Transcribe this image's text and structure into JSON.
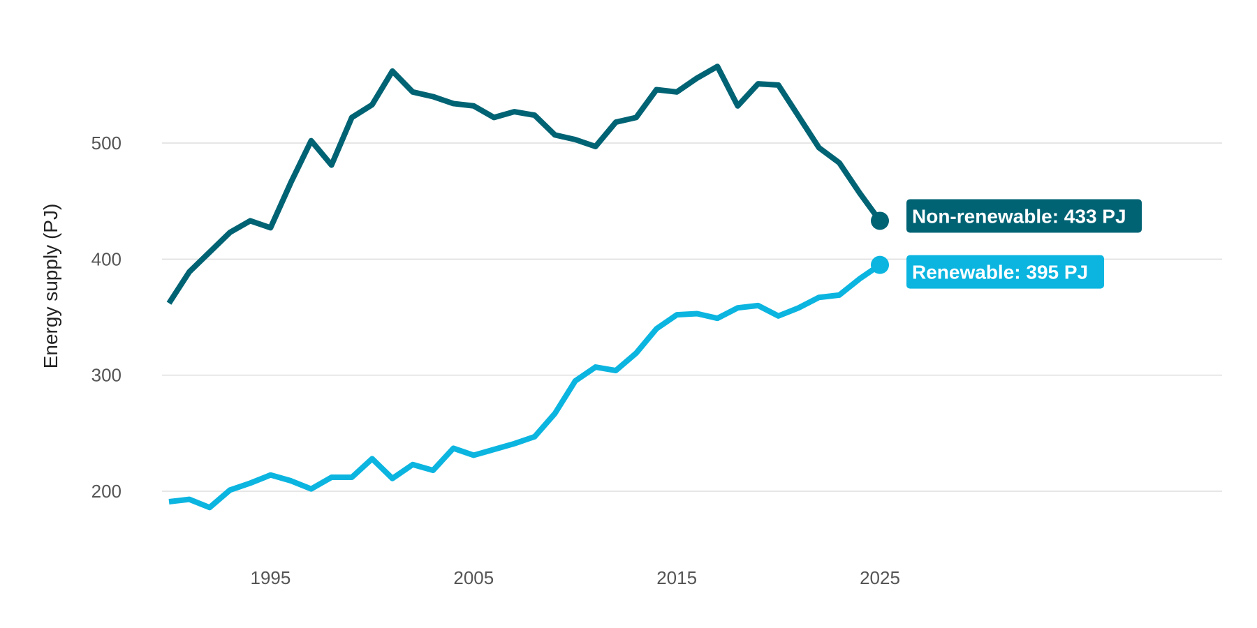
{
  "chart_data": {
    "type": "line",
    "title": "",
    "xlabel": "",
    "ylabel": "Energy supply (PJ)",
    "xlim": [
      1990,
      2042
    ],
    "ylim": [
      150,
      580
    ],
    "x_ticks": [
      1995,
      2005,
      2015,
      2025
    ],
    "y_ticks": [
      200,
      300,
      400,
      500
    ],
    "grid": true,
    "legend": "direct end labels",
    "x": [
      1990,
      1991,
      1992,
      1993,
      1994,
      1995,
      1996,
      1997,
      1998,
      1999,
      2000,
      2001,
      2002,
      2003,
      2004,
      2005,
      2006,
      2007,
      2008,
      2009,
      2010,
      2011,
      2012,
      2013,
      2014,
      2015,
      2016,
      2017,
      2018,
      2019,
      2020,
      2021,
      2022,
      2023,
      2024,
      2025
    ],
    "series": [
      {
        "name": "Non-renewable",
        "color": "#006374",
        "values": [
          362,
          389,
          406,
          423,
          433,
          427,
          466,
          502,
          481,
          522,
          533,
          562,
          544,
          540,
          534,
          532,
          522,
          527,
          524,
          507,
          503,
          497,
          518,
          522,
          546,
          544,
          556,
          566,
          532,
          551,
          550,
          523,
          496,
          483,
          457,
          433
        ],
        "end_label": "Non-renewable: 433 PJ"
      },
      {
        "name": "Renewable",
        "color": "#0bb5e0",
        "values": [
          191,
          193,
          186,
          201,
          207,
          214,
          209,
          202,
          212,
          212,
          228,
          211,
          223,
          218,
          237,
          231,
          236,
          241,
          247,
          267,
          295,
          307,
          304,
          319,
          340,
          352,
          353,
          349,
          358,
          360,
          351,
          358,
          367,
          369,
          383,
          395
        ],
        "end_label": "Renewable: 395 PJ"
      }
    ]
  }
}
